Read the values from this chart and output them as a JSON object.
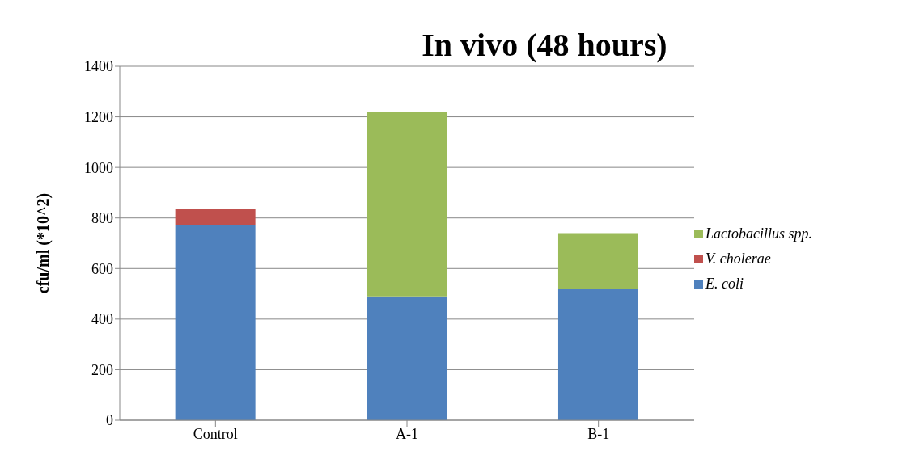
{
  "chart_data": {
    "type": "bar",
    "title": "In vivo (48 hours)",
    "ylabel": "cfu/ml (*10^2)",
    "categories": [
      "Control",
      "A-1",
      "B-1"
    ],
    "stacked": true,
    "series": [
      {
        "name": "E. coli",
        "color": "#4f81bd",
        "values": [
          770,
          490,
          520
        ]
      },
      {
        "name": "V. cholerae",
        "color": "#c0504d",
        "values": [
          65,
          null,
          null
        ]
      },
      {
        "name": "Lactobacillus spp.",
        "color": "#9bbb59",
        "values": [
          null,
          730,
          220
        ]
      }
    ],
    "ylim": [
      0,
      1400
    ],
    "yticks": [
      0,
      200,
      400,
      600,
      800,
      1000,
      1200,
      1400
    ],
    "grid": "y",
    "legend": "right"
  }
}
